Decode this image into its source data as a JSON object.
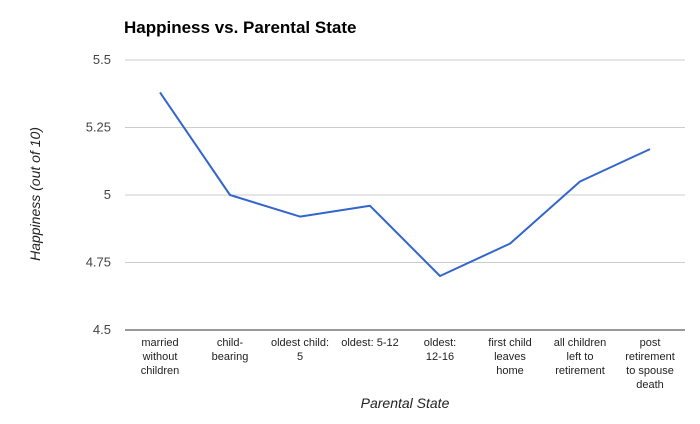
{
  "chart_data": {
    "type": "line",
    "title": "Happiness vs. Parental State",
    "xlabel": "Parental State",
    "ylabel": "Happiness (out of 10)",
    "categories": [
      [
        "married",
        "without",
        "children"
      ],
      [
        "child-",
        "bearing"
      ],
      [
        "oldest child:",
        "5"
      ],
      [
        "oldest: 5-12"
      ],
      [
        "oldest:",
        "12-16"
      ],
      [
        "first child",
        "leaves",
        "home"
      ],
      [
        "all children",
        "left to",
        "retirement"
      ],
      [
        "post",
        "retirement",
        "to spouse",
        "death"
      ]
    ],
    "series": [
      {
        "values": [
          5.38,
          5.0,
          4.92,
          4.96,
          4.7,
          4.82,
          5.05,
          5.17
        ]
      }
    ],
    "ylim": [
      4.5,
      5.5
    ],
    "yticks": [
      "4.5",
      "4.75",
      "5",
      "5.25",
      "5.5"
    ],
    "ytick_values": [
      4.5,
      4.75,
      5.0,
      5.25,
      5.5
    ],
    "grid": true,
    "legend": "none",
    "colors": {
      "series": "#3366cc",
      "grid": "#cccccc",
      "baseline": "#333333"
    }
  }
}
